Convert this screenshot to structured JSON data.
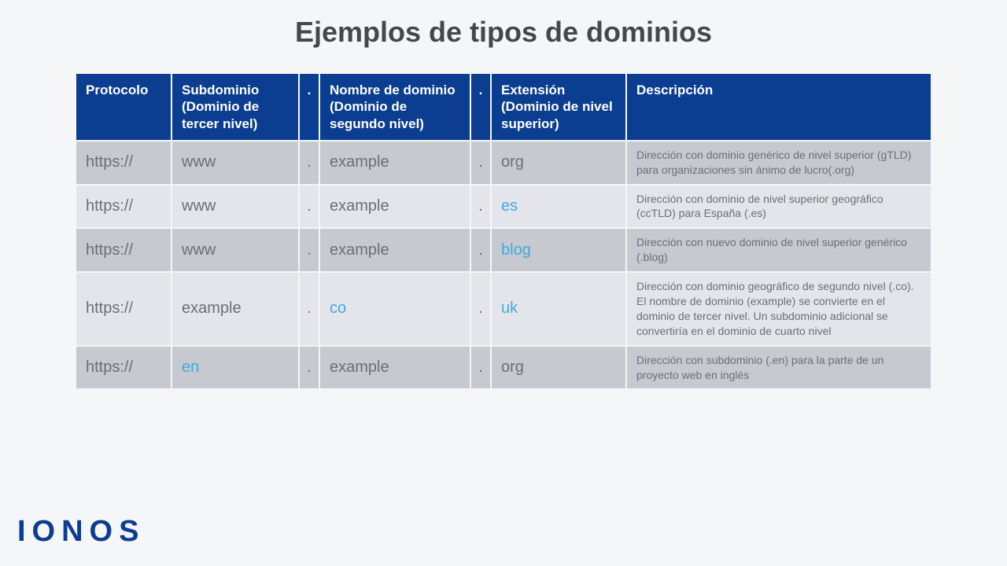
{
  "title": "Ejemplos de tipos de dominios",
  "logo": "IONOS",
  "colors": {
    "header_bg": "#0b3d91",
    "header_text": "#ffffff",
    "row_odd_bg": "#c6c9cf",
    "row_even_bg": "#e3e5ea",
    "cell_text": "#6a6f76",
    "highlight": "#3fa9e2",
    "page_bg": "#f5f6f7",
    "title_color": "#44484d"
  },
  "columns": [
    "Protocolo",
    "Subdominio (Dominio de tercer nivel)",
    ".",
    "Nombre de dominio (Dominio de segundo nivel)",
    ".",
    "Extensión (Dominio de nivel superior)",
    "Descripción"
  ],
  "rows": [
    {
      "protocol": "https://",
      "subdomain": "www",
      "subdomain_hl": false,
      "dot1": ".",
      "name": "example",
      "name_hl": false,
      "dot2": ".",
      "ext": "org",
      "ext_hl": false,
      "desc": "Dirección con dominio genérico de nivel superior (gTLD) para organizaciones sin ánimo de lucro(.org)"
    },
    {
      "protocol": "https://",
      "subdomain": "www",
      "subdomain_hl": false,
      "dot1": ".",
      "name": "example",
      "name_hl": false,
      "dot2": ".",
      "ext": "es",
      "ext_hl": true,
      "desc": "Dirección con dominio de nivel superior geográfico (ccTLD) para España (.es)"
    },
    {
      "protocol": "https://",
      "subdomain": "www",
      "subdomain_hl": false,
      "dot1": ".",
      "name": "example",
      "name_hl": false,
      "dot2": ".",
      "ext": "blog",
      "ext_hl": true,
      "desc": "Dirección con nuevo dominio de nivel superior genérico (.blog)"
    },
    {
      "protocol": "https://",
      "subdomain": "example",
      "subdomain_hl": false,
      "dot1": ".",
      "name": "co",
      "name_hl": true,
      "dot2": ".",
      "ext": "uk",
      "ext_hl": true,
      "desc": "Dirección con dominio geográfico de segundo nivel (.co). El nombre de dominio (example) se convierte en el dominio de tercer nivel. Un subdominio adicional se convertiría en el dominio de cuarto nivel"
    },
    {
      "protocol": "https://",
      "subdomain": "en",
      "subdomain_hl": true,
      "dot1": ".",
      "name": "example",
      "name_hl": false,
      "dot2": ".",
      "ext": "org",
      "ext_hl": false,
      "desc": "Dirección con subdominio (.en) para la parte de un proyecto web en inglés"
    }
  ]
}
